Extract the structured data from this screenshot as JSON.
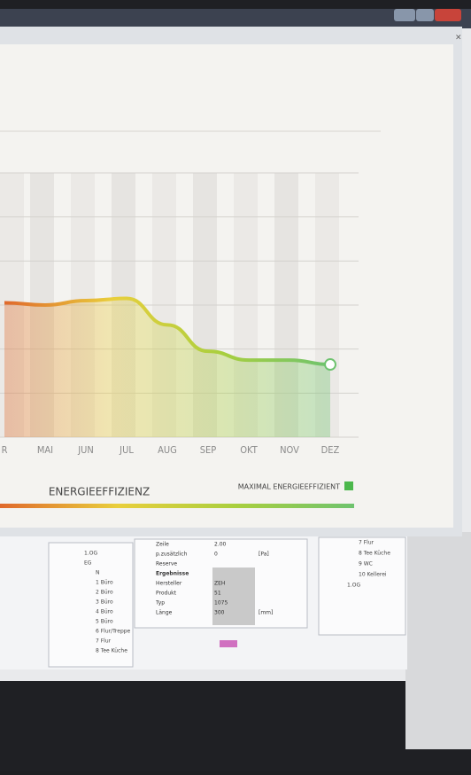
{
  "chart_data": {
    "type": "area",
    "categories": [
      "R",
      "MAI",
      "JUN",
      "JUL",
      "AUG",
      "SEP",
      "OKT",
      "NOV",
      "DEZ"
    ],
    "values": [
      3.05,
      3.0,
      3.1,
      3.15,
      2.55,
      1.95,
      1.75,
      1.75,
      1.65
    ],
    "ylim": [
      0,
      6
    ],
    "yticks": [
      0,
      1,
      2,
      3,
      4,
      5,
      6
    ],
    "grid": true,
    "gradient": [
      "#e0692c",
      "#e9cf3c",
      "#a9cf3e",
      "#6ec36e"
    ],
    "xlabel": "ENERGIEEFFIZIENZ",
    "legend_label": "MAXIMAL ENERGIEEFFIZIENT",
    "legend_color": "#4cb84c"
  },
  "background": {
    "left_column": [
      "1.OG",
      "EG",
      "N",
      "1 Büro",
      "2 Büro",
      "3 Büro",
      "4 Büro",
      "5 Büro",
      "6 Flur/Treppe",
      "7 Flur",
      "8 Tee Küche"
    ],
    "table": [
      [
        "Zeile",
        "2.00"
      ],
      [
        "p.zusätzlich",
        "0",
        "[Pa]"
      ],
      [
        "Reserve"
      ],
      [
        "Ergebnisse"
      ],
      [
        "Hersteller",
        "ZEH"
      ],
      [
        "Produkt",
        "51"
      ],
      [
        "Typ",
        "1075"
      ],
      [
        "Länge",
        "300",
        "[mm]"
      ]
    ],
    "right_column": [
      "7 Flur",
      "8 Tee Küche",
      "9 WC",
      "10 Kellerei",
      "1.OG"
    ]
  }
}
